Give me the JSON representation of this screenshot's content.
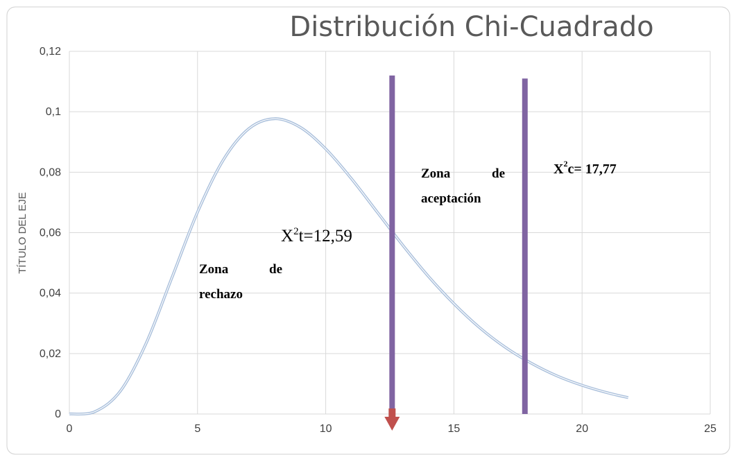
{
  "chart_data": {
    "type": "line",
    "title": "Distribución Chi-Cuadrado",
    "y_label": "TÍTULO DEL EJE",
    "x": [
      0,
      1,
      2,
      3,
      4,
      5,
      6,
      7,
      8,
      9,
      10,
      11,
      12,
      13,
      14,
      15,
      16,
      17,
      18,
      19,
      20,
      21,
      21.8
    ],
    "series": [
      {
        "color": "#a9bfdb",
        "values": [
          0,
          0.0008,
          0.0077,
          0.0235,
          0.0451,
          0.0668,
          0.084,
          0.0944,
          0.0977,
          0.0949,
          0.0877,
          0.0779,
          0.0669,
          0.0559,
          0.0456,
          0.0365,
          0.0286,
          0.0221,
          0.0169,
          0.0127,
          0.0095,
          0.007,
          0.0054
        ]
      }
    ],
    "xlim": [
      0,
      25
    ],
    "ylim": [
      0,
      0.12
    ],
    "xticks": [
      0,
      5,
      10,
      15,
      20,
      25
    ],
    "yticks": [
      0,
      {
        "value": 0.02,
        "label": "0,02"
      },
      {
        "value": 0.04,
        "label": "0,04"
      },
      {
        "value": 0.06,
        "label": "0,06"
      },
      {
        "value": 0.08,
        "label": "0,08"
      },
      {
        "value": 0.1,
        "label": "0,1"
      },
      {
        "value": 0.12,
        "label": "0,12"
      }
    ],
    "grid": true,
    "vlines": [
      {
        "x": 12.59,
        "top": 0.112,
        "color": "#8064a2"
      },
      {
        "x": 17.77,
        "top": 0.111,
        "color": "#8064a2"
      }
    ],
    "zone_labels": [
      {
        "words": [
          [
            "Zona",
            "de"
          ],
          [
            "rechazo"
          ]
        ]
      },
      {
        "words": [
          [
            "Zona",
            "de"
          ],
          [
            "aceptación"
          ]
        ]
      }
    ],
    "stat_labels": [
      {
        "base": "X",
        "sup": "2",
        "rest": "t=12,59"
      },
      {
        "base": "X",
        "sup": "2",
        "rest": "c= 17,77"
      }
    ]
  }
}
